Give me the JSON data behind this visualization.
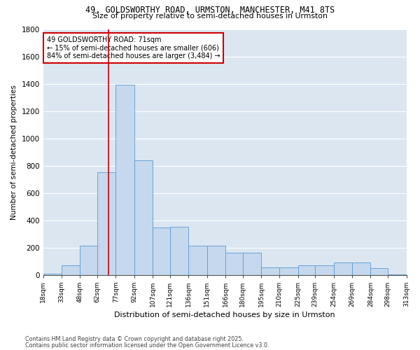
{
  "title_line1": "49, GOLDSWORTHY ROAD, URMSTON, MANCHESTER, M41 8TS",
  "title_line2": "Size of property relative to semi-detached houses in Urmston",
  "xlabel": "Distribution of semi-detached houses by size in Urmston",
  "ylabel": "Number of semi-detached properties",
  "footnote_line1": "Contains HM Land Registry data © Crown copyright and database right 2025.",
  "footnote_line2": "Contains public sector information licensed under the Open Government Licence v3.0.",
  "property_size": 71,
  "property_label": "49 GOLDSWORTHY ROAD: 71sqm",
  "pct_smaller": "15% of semi-detached houses are smaller (606)",
  "pct_larger": "84% of semi-detached houses are larger (3,484)",
  "bin_edges": [
    18,
    33,
    48,
    62,
    77,
    92,
    107,
    121,
    136,
    151,
    166,
    180,
    195,
    210,
    225,
    239,
    254,
    269,
    284,
    298,
    313
  ],
  "bar_heights": [
    10,
    70,
    215,
    750,
    1390,
    840,
    345,
    350,
    215,
    215,
    160,
    160,
    55,
    55,
    70,
    70,
    90,
    90,
    50,
    5
  ],
  "tick_labels": [
    "18sqm",
    "33sqm",
    "48sqm",
    "62sqm",
    "77sqm",
    "92sqm",
    "107sqm",
    "121sqm",
    "136sqm",
    "151sqm",
    "166sqm",
    "180sqm",
    "195sqm",
    "210sqm",
    "225sqm",
    "239sqm",
    "254sqm",
    "269sqm",
    "284sqm",
    "298sqm",
    "313sqm"
  ],
  "bar_color": "#c5d8ed",
  "bar_edge_color": "#5b9bd5",
  "vline_color": "#cc0000",
  "annotation_box_color": "#cc0000",
  "bg_color": "#dce6f1",
  "grid_color": "#ffffff",
  "ylim": [
    0,
    1800
  ],
  "yticks": [
    0,
    200,
    400,
    600,
    800,
    1000,
    1200,
    1400,
    1600,
    1800
  ],
  "fig_width": 6.0,
  "fig_height": 5.0,
  "dpi": 100
}
